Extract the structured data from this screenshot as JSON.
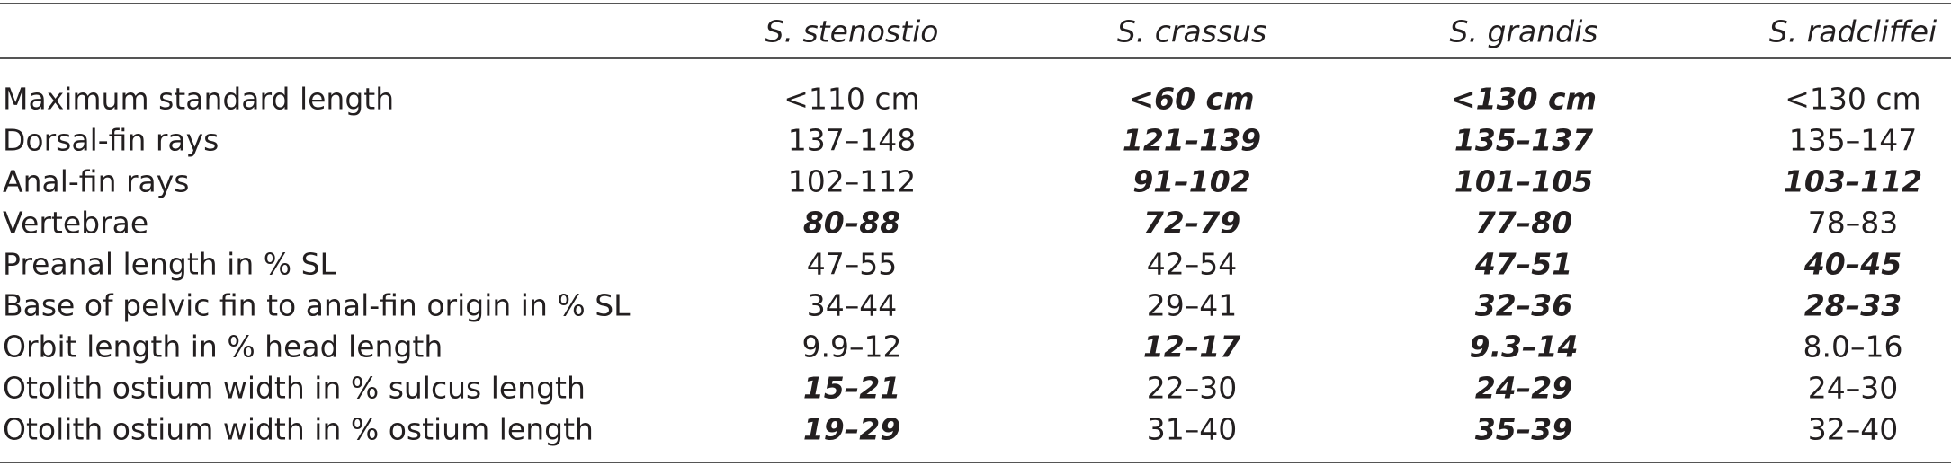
{
  "table": {
    "header": [
      "S. stenostio",
      "S. crassus",
      "S. grandis",
      "S. radcliffei"
    ],
    "rows": [
      {
        "label": "Maximum standard length",
        "values": [
          "<110 cm",
          "<60 cm",
          "<130 cm",
          "<130 cm"
        ],
        "bold": [
          false,
          true,
          true,
          false
        ]
      },
      {
        "label": "Dorsal-fin rays",
        "values": [
          "137–148",
          "121–139",
          "135–137",
          "135–147"
        ],
        "bold": [
          false,
          true,
          true,
          false
        ]
      },
      {
        "label": "Anal-fin rays",
        "values": [
          "102–112",
          "91–102",
          "101–105",
          "103–112"
        ],
        "bold": [
          false,
          true,
          true,
          true
        ]
      },
      {
        "label": "Vertebrae",
        "values": [
          "80–88",
          "72–79",
          "77–80",
          "78–83"
        ],
        "bold": [
          true,
          true,
          true,
          false
        ]
      },
      {
        "label": "Preanal length in % SL",
        "values": [
          "47–55",
          "42–54",
          "47–51",
          "40–45"
        ],
        "bold": [
          false,
          false,
          true,
          true
        ]
      },
      {
        "label": "Base of pelvic fin to anal-fin origin in % SL",
        "values": [
          "34–44",
          "29–41",
          "32–36",
          "28–33"
        ],
        "bold": [
          false,
          false,
          true,
          true
        ]
      },
      {
        "label": "Orbit length in % head length",
        "values": [
          "9.9–12",
          "12–17",
          "9.3–14",
          "8.0–16"
        ],
        "bold": [
          false,
          true,
          true,
          false
        ]
      },
      {
        "label": "Otolith ostium width in % sulcus length",
        "values": [
          "15–21",
          "22–30",
          "24–29",
          "24–30"
        ],
        "bold": [
          true,
          false,
          true,
          false
        ]
      },
      {
        "label": "Otolith ostium width in % ostium length",
        "values": [
          "19–29",
          "31–40",
          "35–39",
          "32–40"
        ],
        "bold": [
          true,
          false,
          true,
          false
        ]
      }
    ]
  }
}
